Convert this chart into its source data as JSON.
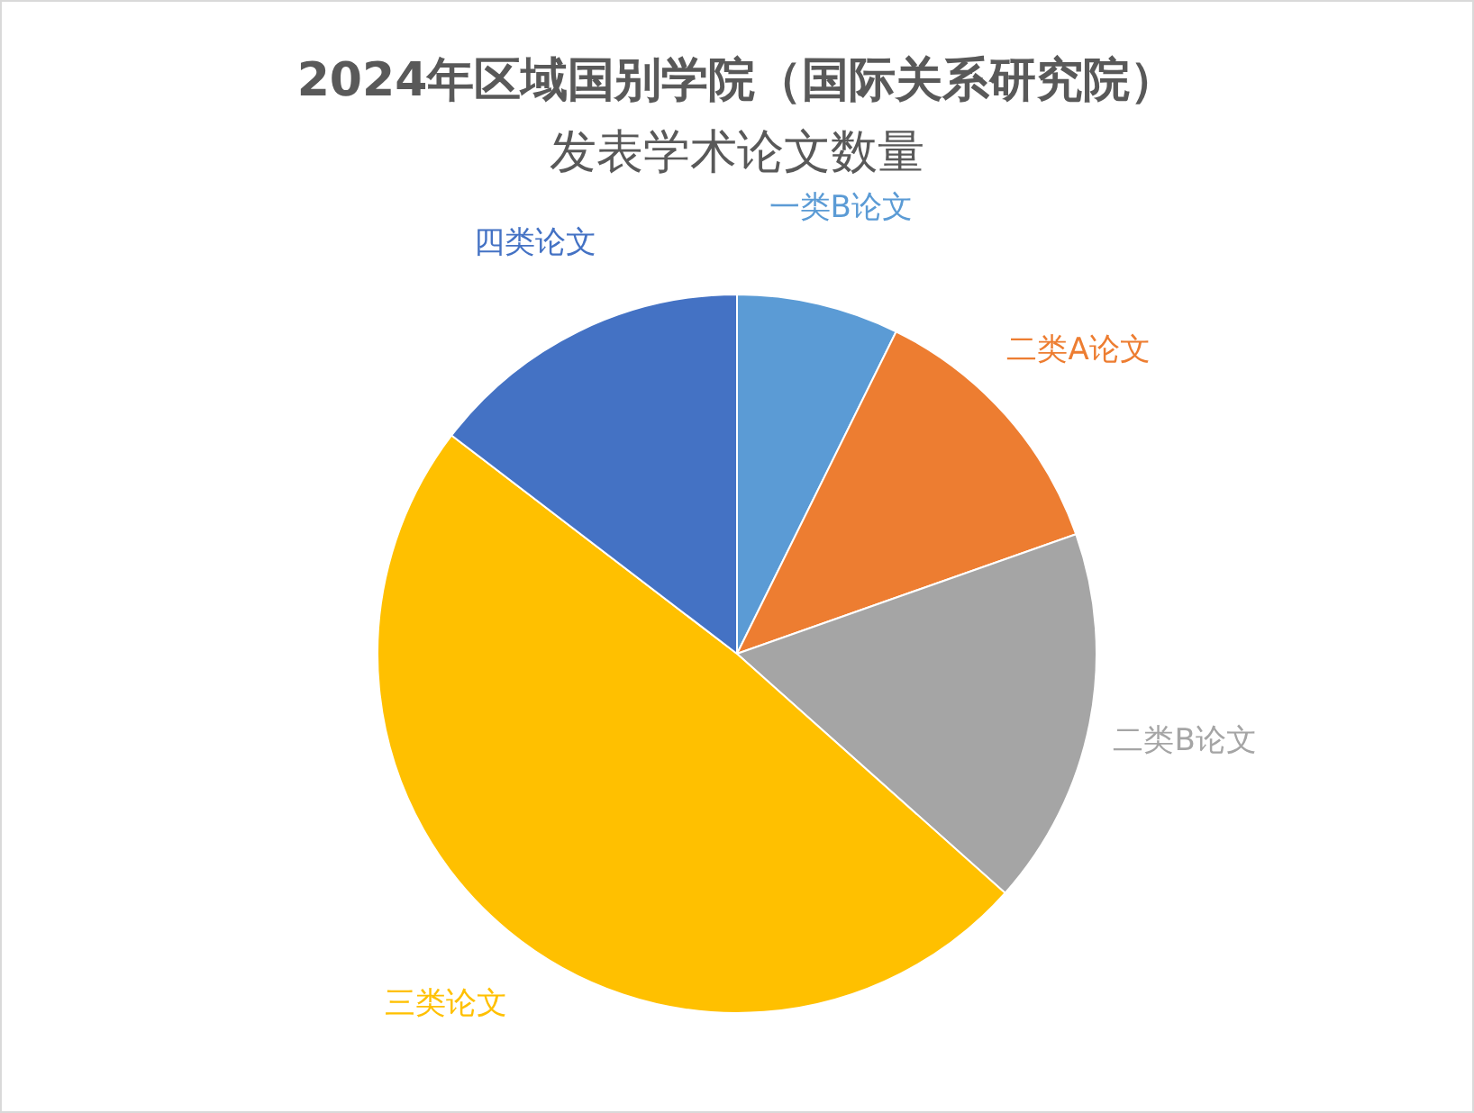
{
  "chart_data": {
    "type": "pie",
    "title": "2024年区域国别学院（国际关系研究院）",
    "subtitle": "发表学术论文数量",
    "categories": [
      "一类B论文",
      "二类A论文",
      "二类B论文",
      "三类论文",
      "四类论文"
    ],
    "values": [
      7.3,
      12.3,
      17.0,
      48.8,
      14.6
    ],
    "colors": [
      "#5b9bd5",
      "#ed7d31",
      "#a5a5a5",
      "#ffc000",
      "#4472c4"
    ],
    "legend": false
  }
}
